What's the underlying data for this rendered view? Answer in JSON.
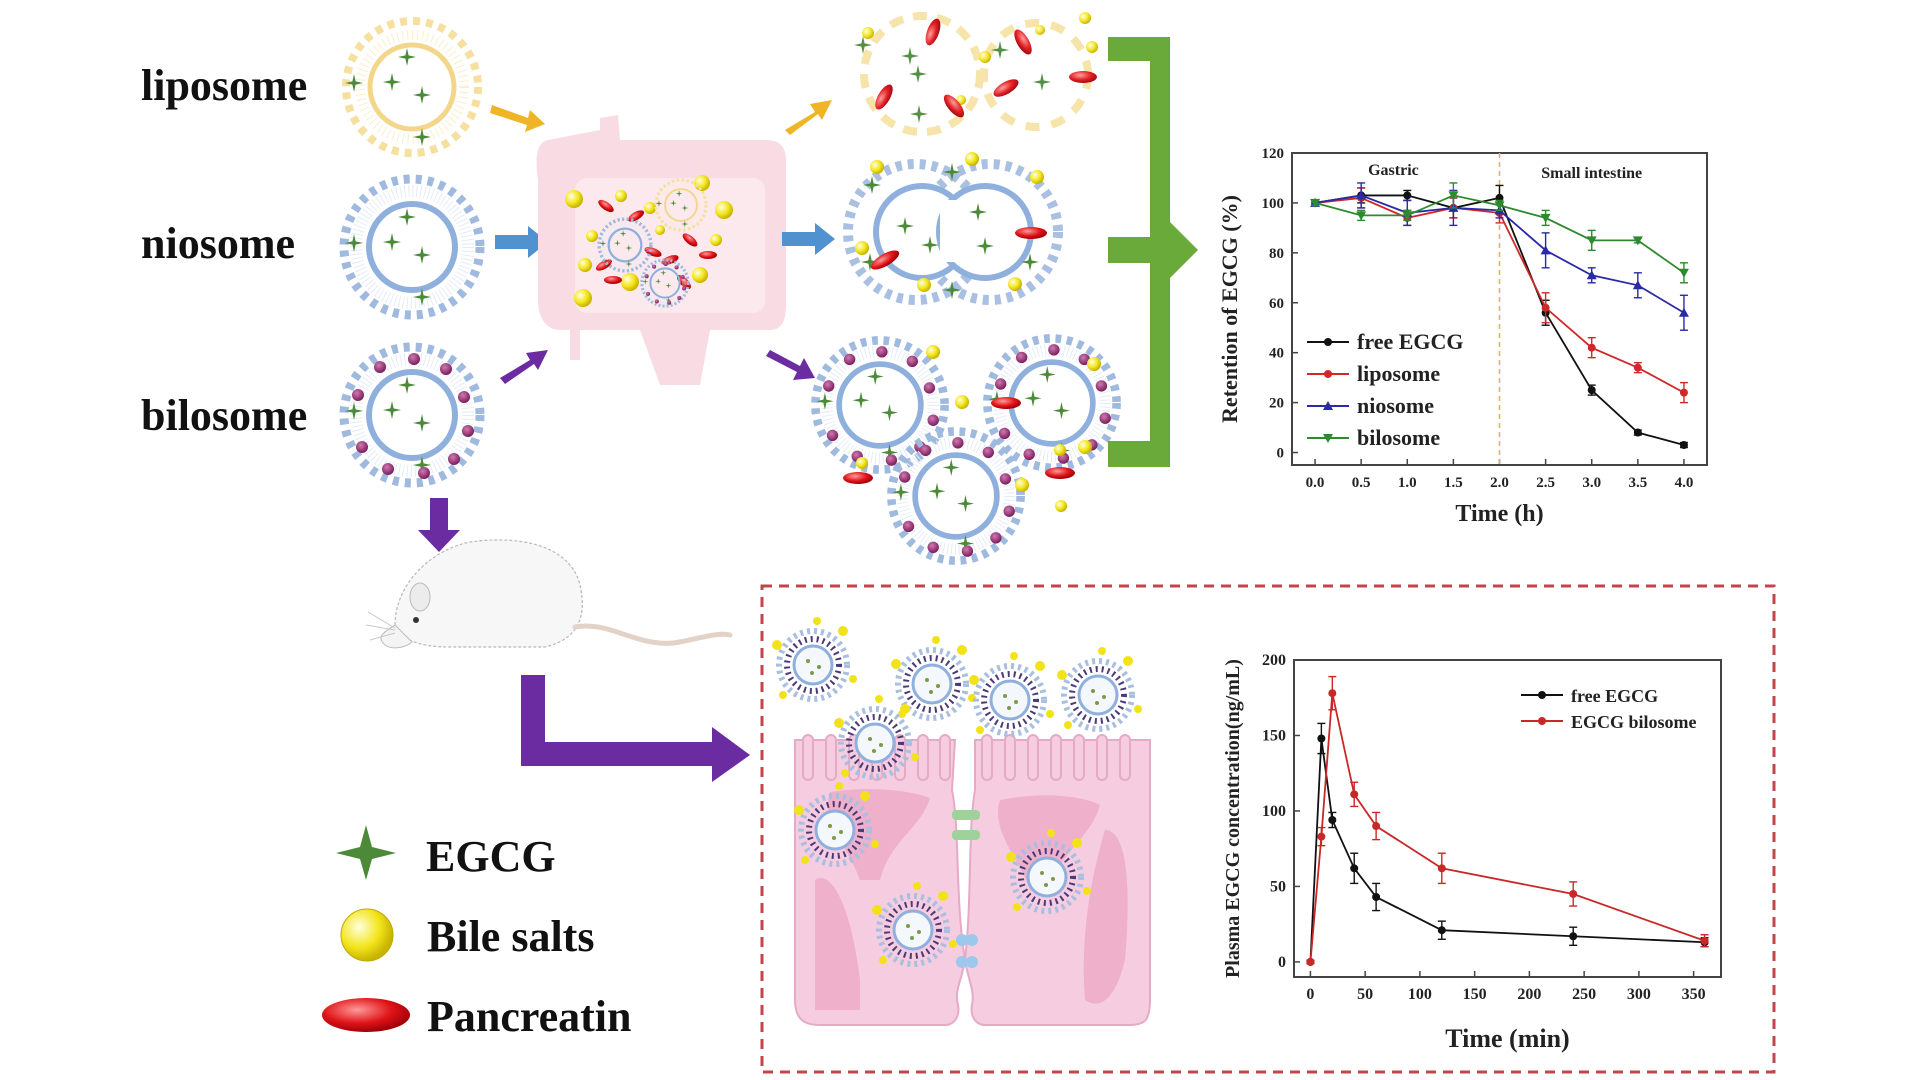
{
  "formulations": [
    {
      "name": "liposome",
      "color": "#f5d98a",
      "arrow_color": "#f0b526"
    },
    {
      "name": "niosome",
      "color": "#8fb0dc",
      "arrow_color": "#4f92cf"
    },
    {
      "name": "bilosome",
      "color": "#8fb0dc",
      "accent": "#8a2a6e",
      "arrow_color": "#6a2ca0"
    }
  ],
  "legend": {
    "items": [
      {
        "label": "EGCG",
        "icon": "green-star-icon",
        "color": "#4c8a3a"
      },
      {
        "label": "Bile salts",
        "icon": "yellow-sphere-icon",
        "color": "#f2e21a"
      },
      {
        "label": "Pancreatin",
        "icon": "red-ellipse-icon",
        "color": "#e0141a"
      }
    ]
  },
  "colors": {
    "green_arrow": "#6aaa3a",
    "purple_arrow": "#6a2ca0",
    "dashed_box": "#c0464a",
    "cell_pink": "#f4c6da",
    "intestine_pink": "#f8dbe3"
  },
  "chart_data": [
    {
      "type": "line",
      "title": "",
      "xlabel": "Time (h)",
      "ylabel": "Retention of EGCG (%)",
      "xlim": [
        0,
        4
      ],
      "ylim": [
        0,
        120
      ],
      "x": [
        0.0,
        0.5,
        1.0,
        1.5,
        2.0,
        2.5,
        3.0,
        3.5,
        4.0
      ],
      "x_tick_labels": [
        "0.0",
        "0.5",
        "1.0",
        "1.5",
        "2.0",
        "2.5",
        "3.0",
        "3.5",
        "4.0"
      ],
      "y_ticks": [
        0,
        20,
        40,
        60,
        80,
        100,
        120
      ],
      "annotations": [
        {
          "text": "Gastric",
          "region": "0-2 h"
        },
        {
          "text": "Small intestine",
          "region": "2-4 h"
        }
      ],
      "divider_x": 2.0,
      "grid": false,
      "legend_position": "lower left",
      "series": [
        {
          "name": "free EGCG",
          "color": "#111111",
          "marker": "circle",
          "values": [
            100,
            103,
            103,
            98,
            102,
            56,
            25,
            8,
            3
          ],
          "errors": [
            1,
            3,
            2,
            4,
            5,
            5,
            2,
            1,
            1
          ]
        },
        {
          "name": "liposome",
          "color": "#d02828",
          "marker": "circle",
          "values": [
            100,
            102,
            94,
            98,
            96,
            58,
            42,
            34,
            24
          ],
          "errors": [
            1,
            4,
            3,
            4,
            4,
            6,
            4,
            2,
            4
          ]
        },
        {
          "name": "niosome",
          "color": "#2a2aa8",
          "marker": "triangle-up",
          "values": [
            100,
            103,
            96,
            98,
            97,
            81,
            71,
            67,
            56
          ],
          "errors": [
            1,
            5,
            5,
            7,
            3,
            7,
            3,
            5,
            7
          ]
        },
        {
          "name": "bilosome",
          "color": "#2e8a2e",
          "marker": "triangle-down",
          "values": [
            100,
            95,
            95,
            103,
            99,
            94,
            85,
            85,
            72
          ],
          "errors": [
            1,
            2,
            2,
            5,
            2,
            3,
            4,
            1,
            4
          ]
        }
      ]
    },
    {
      "type": "line",
      "title": "",
      "xlabel": "Time (min)",
      "ylabel": "Plasma EGCG concentration(ng/mL)",
      "xlim": [
        -15,
        375
      ],
      "ylim": [
        -10,
        200
      ],
      "x": [
        0,
        10,
        20,
        40,
        60,
        120,
        240,
        360
      ],
      "x_ticks": [
        0,
        50,
        100,
        150,
        200,
        250,
        300,
        350
      ],
      "y_ticks": [
        0,
        50,
        100,
        150,
        200
      ],
      "grid": false,
      "legend_position": "upper right",
      "series": [
        {
          "name": "free EGCG",
          "color": "#111111",
          "marker": "circle",
          "values": [
            0,
            148,
            94,
            62,
            43,
            21,
            17,
            13
          ],
          "errors": [
            1,
            10,
            5,
            10,
            9,
            6,
            6,
            3
          ]
        },
        {
          "name": "EGCG bilosome",
          "color": "#c82828",
          "marker": "circle",
          "values": [
            0,
            83,
            178,
            111,
            90,
            62,
            45,
            14
          ],
          "errors": [
            1,
            6,
            11,
            8,
            9,
            10,
            8,
            4
          ]
        }
      ]
    }
  ]
}
